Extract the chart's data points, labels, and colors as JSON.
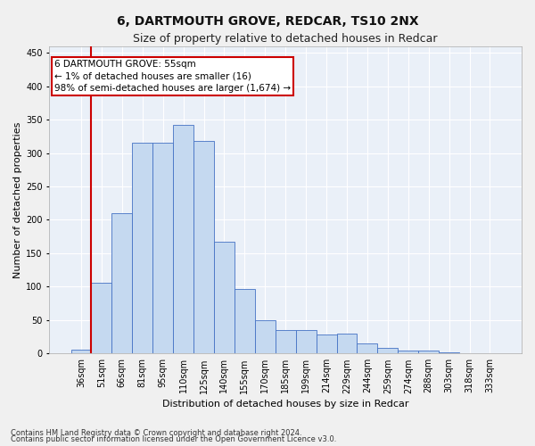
{
  "title": "6, DARTMOUTH GROVE, REDCAR, TS10 2NX",
  "subtitle": "Size of property relative to detached houses in Redcar",
  "xlabel": "Distribution of detached houses by size in Redcar",
  "ylabel": "Number of detached properties",
  "categories": [
    "36sqm",
    "51sqm",
    "66sqm",
    "81sqm",
    "95sqm",
    "110sqm",
    "125sqm",
    "140sqm",
    "155sqm",
    "170sqm",
    "185sqm",
    "199sqm",
    "214sqm",
    "229sqm",
    "244sqm",
    "259sqm",
    "274sqm",
    "288sqm",
    "303sqm",
    "318sqm",
    "333sqm"
  ],
  "bar_heights": [
    6,
    106,
    210,
    315,
    316,
    342,
    318,
    167,
    97,
    50,
    35,
    35,
    29,
    30,
    15,
    8,
    5,
    5,
    2,
    1,
    0
  ],
  "bar_color": "#c5d9f0",
  "bar_edge_color": "#4472c4",
  "vline_color": "#cc0000",
  "vline_x_index": 0.5,
  "ylim": [
    0,
    460
  ],
  "yticks": [
    0,
    50,
    100,
    150,
    200,
    250,
    300,
    350,
    400,
    450
  ],
  "annotation_text": "6 DARTMOUTH GROVE: 55sqm\n← 1% of detached houses are smaller (16)\n98% of semi-detached houses are larger (1,674) →",
  "annotation_box_color": "#ffffff",
  "annotation_box_edge": "#cc0000",
  "footnote1": "Contains HM Land Registry data © Crown copyright and database right 2024.",
  "footnote2": "Contains public sector information licensed under the Open Government Licence v3.0.",
  "background_color": "#eaf0f8",
  "grid_color": "#ffffff",
  "title_fontsize": 10,
  "subtitle_fontsize": 9,
  "xlabel_fontsize": 8,
  "ylabel_fontsize": 8,
  "tick_fontsize": 7,
  "annotation_fontsize": 7.5,
  "footnote_fontsize": 6
}
